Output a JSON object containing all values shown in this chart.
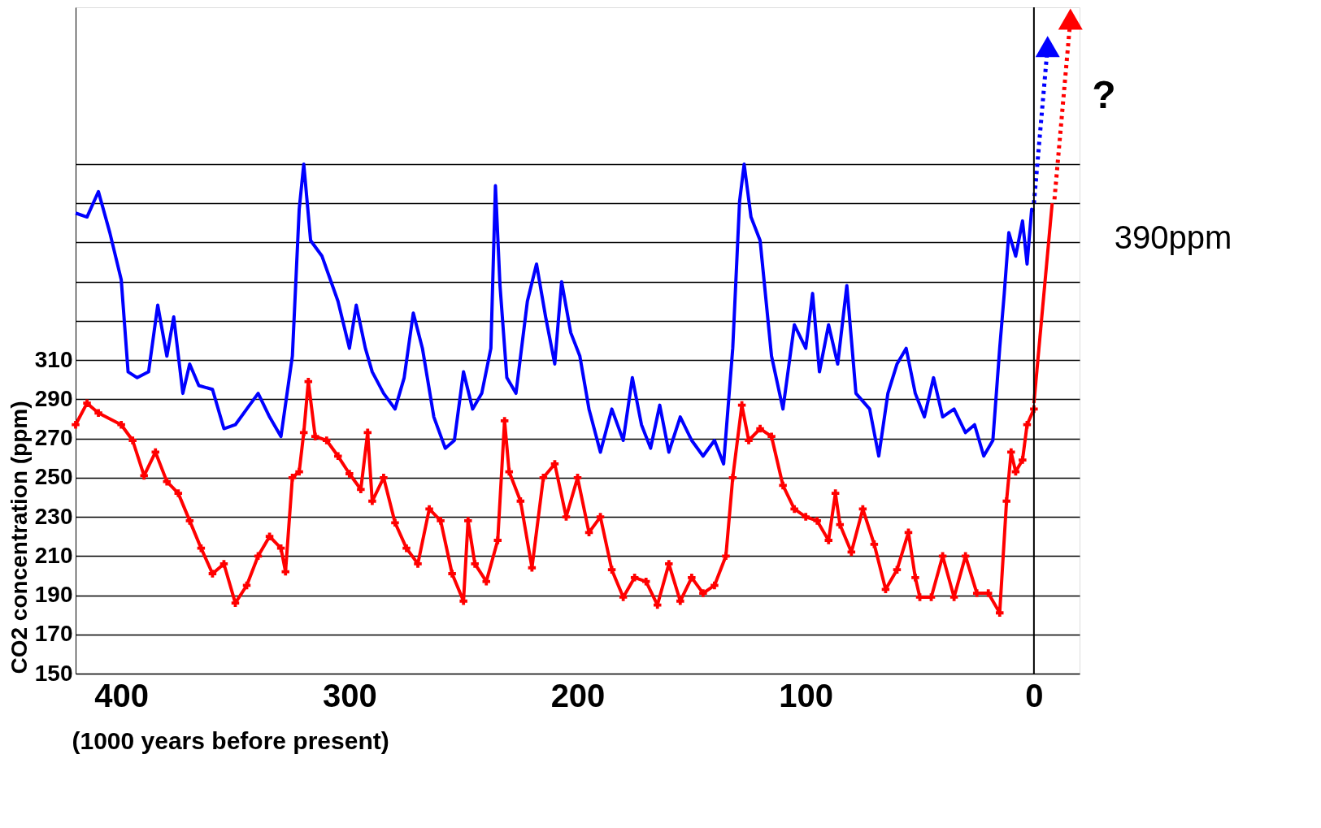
{
  "chart_data": {
    "type": "line",
    "xlabel": "(1000 years before present)",
    "ylabel": "CO2 concentration (ppm)",
    "xlim": [
      420,
      -20
    ],
    "xticks": [
      400,
      300,
      200,
      100,
      0
    ],
    "ylim": [
      150,
      490
    ],
    "yticks": [
      150,
      170,
      190,
      210,
      230,
      250,
      270,
      290,
      310,
      {
        "value": 330,
        "label": null
      },
      {
        "value": 350,
        "label": null
      },
      {
        "value": 370,
        "label": null
      },
      {
        "value": 390,
        "label": null
      },
      {
        "value": 410,
        "label": null
      }
    ],
    "grid": "y",
    "ref_lines": [
      {
        "axis": "x",
        "value": 0,
        "color": "#000000"
      }
    ],
    "annotations": [
      "?",
      "390ppm"
    ],
    "series": [
      {
        "color": "#0000ff",
        "x": [
          420,
          415,
          410,
          405,
          400,
          397,
          393,
          388,
          384,
          380,
          377,
          373,
          370,
          366,
          360,
          355,
          350,
          345,
          340,
          335,
          330,
          325,
          322,
          320,
          317,
          312,
          305,
          300,
          297,
          293,
          290,
          285,
          280,
          276,
          272,
          268,
          263,
          258,
          254,
          250,
          246,
          242,
          238,
          236,
          234,
          231,
          227,
          222,
          218,
          214,
          210,
          207,
          203,
          199,
          195,
          190,
          185,
          180,
          176,
          172,
          168,
          164,
          160,
          155,
          150,
          145,
          140,
          136,
          132,
          129,
          127,
          124,
          120,
          115,
          110,
          105,
          100,
          97,
          94,
          90,
          86,
          82,
          78,
          72,
          68,
          64,
          60,
          56,
          52,
          48,
          44,
          40,
          35,
          30,
          26,
          22,
          18,
          15,
          13,
          11,
          8,
          5,
          3,
          1,
          0
        ],
        "values": [
          385,
          383,
          396,
          375,
          351,
          304,
          301,
          304,
          338,
          312,
          332,
          293,
          308,
          297,
          295,
          275,
          277,
          285,
          293,
          281,
          271,
          312,
          387,
          410,
          371,
          363,
          340,
          316,
          338,
          316,
          304,
          293,
          285,
          301,
          334,
          316,
          281,
          265,
          269,
          304,
          285,
          293,
          316,
          399,
          348,
          301,
          293,
          340,
          359,
          332,
          308,
          350,
          324,
          312,
          285,
          263,
          285,
          269,
          301,
          277,
          265,
          287,
          263,
          281,
          269,
          261,
          269,
          257,
          316,
          391,
          410,
          383,
          371,
          312,
          285,
          328,
          316,
          344,
          304,
          328,
          308,
          348,
          293,
          285,
          261,
          293,
          308,
          316,
          293,
          281,
          301,
          281,
          285,
          273,
          277,
          261,
          269,
          316,
          344,
          375,
          363,
          381,
          359,
          387,
          386
        ]
      },
      {
        "color": "#ff0000",
        "marker": "cross",
        "x": [
          420,
          415,
          410,
          400,
          395,
          390,
          385,
          380,
          375,
          370,
          365,
          360,
          355,
          350,
          345,
          340,
          335,
          330,
          328,
          325,
          322,
          320,
          318,
          315,
          310,
          305,
          300,
          295,
          292,
          290,
          285,
          280,
          275,
          270,
          265,
          260,
          255,
          250,
          248,
          245,
          240,
          235,
          232,
          230,
          225,
          220,
          215,
          210,
          205,
          200,
          195,
          190,
          185,
          180,
          175,
          170,
          165,
          160,
          155,
          150,
          145,
          140,
          135,
          132,
          128,
          125,
          120,
          115,
          110,
          105,
          100,
          95,
          90,
          87,
          85,
          80,
          75,
          70,
          65,
          60,
          55,
          52,
          50,
          45,
          40,
          35,
          30,
          25,
          20,
          15,
          12,
          10,
          8,
          5,
          3,
          0
        ],
        "values": [
          277,
          288,
          283,
          277,
          269,
          251,
          263,
          248,
          242,
          228,
          214,
          201,
          206,
          186,
          195,
          210,
          220,
          214,
          202,
          250,
          253,
          273,
          299,
          271,
          269,
          261,
          252,
          244,
          273,
          238,
          250,
          227,
          214,
          206,
          234,
          228,
          201,
          187,
          228,
          206,
          197,
          218,
          279,
          253,
          238,
          204,
          250,
          257,
          230,
          250,
          222,
          230,
          203,
          189,
          199,
          197,
          185,
          206,
          187,
          199,
          191,
          195,
          210,
          250,
          287,
          269,
          275,
          271,
          246,
          234,
          230,
          228,
          218,
          242,
          226,
          212,
          234,
          216,
          193,
          203,
          222,
          199,
          189,
          189,
          210,
          189,
          210,
          191,
          191,
          181,
          238,
          263,
          253,
          259,
          277,
          285
        ]
      },
      {
        "color": "#ff0000",
        "x": [
          0,
          -8
        ],
        "values": [
          288,
          390
        ]
      },
      {
        "color": "#0000ff",
        "line_style": "dotted",
        "x": [
          0,
          -6
        ],
        "values": [
          390,
          470
        ]
      },
      {
        "color": "#ff0000",
        "line_style": "dotted",
        "x": [
          -9,
          -16
        ],
        "values": [
          392,
          484
        ]
      }
    ]
  }
}
